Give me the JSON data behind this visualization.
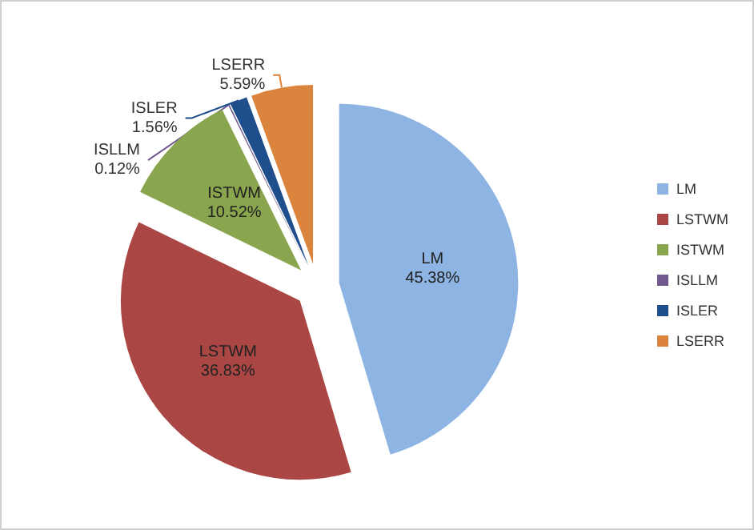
{
  "chart_data": {
    "type": "pie",
    "categories": [
      "LM",
      "LSTWM",
      "ISTWM",
      "ISLLM",
      "ISLER",
      "LSERR"
    ],
    "values": [
      45.38,
      36.83,
      10.52,
      0.12,
      1.56,
      5.59
    ],
    "colors": [
      "#8eb4e3",
      "#aa4643",
      "#89a54e",
      "#71588f",
      "#1f4e8c",
      "#db843d"
    ],
    "value_labels": [
      "45.38%",
      "36.83%",
      "10.52%",
      "0.12%",
      "1.56%",
      "5.59%"
    ],
    "legend": "right"
  }
}
